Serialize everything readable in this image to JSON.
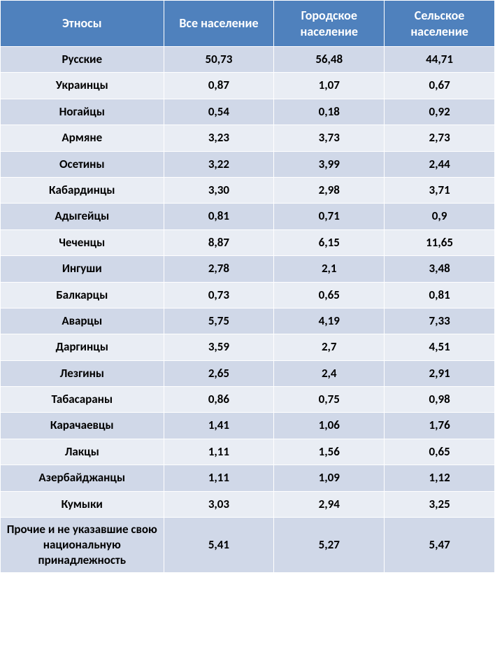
{
  "table": {
    "type": "table",
    "background_color": "#ffffff",
    "header_bg": "#4f81bd",
    "header_fg": "#ffffff",
    "row_odd_bg": "#d0d8e8",
    "row_even_bg": "#e9edf4",
    "cell_fg": "#000000",
    "border_color": "#ffffff",
    "header_fontsize": 18,
    "cell_fontsize": 17,
    "font_weight": "bold",
    "font_family": "Calibri",
    "columns": [
      {
        "key": "ethnos",
        "label": "Этносы",
        "width_pct": 33,
        "align": "center"
      },
      {
        "key": "all",
        "label": "Все население",
        "width_pct": 22.3,
        "align": "center"
      },
      {
        "key": "urban",
        "label": "Городское население",
        "width_pct": 22.3,
        "align": "center"
      },
      {
        "key": "rural",
        "label": "Сельское население",
        "width_pct": 22.3,
        "align": "center"
      }
    ],
    "rows": [
      {
        "ethnos": "Русские",
        "all": "50,73",
        "urban": "56,48",
        "rural": "44,71"
      },
      {
        "ethnos": "Украинцы",
        "all": "0,87",
        "urban": "1,07",
        "rural": "0,67"
      },
      {
        "ethnos": "Ногайцы",
        "all": "0,54",
        "urban": "0,18",
        "rural": "0,92"
      },
      {
        "ethnos": "Армяне",
        "all": "3,23",
        "urban": "3,73",
        "rural": "2,73"
      },
      {
        "ethnos": "Осетины",
        "all": "3,22",
        "urban": "3,99",
        "rural": "2,44"
      },
      {
        "ethnos": "Кабардинцы",
        "all": "3,30",
        "urban": "2,98",
        "rural": "3,71"
      },
      {
        "ethnos": "Адыгейцы",
        "all": "0,81",
        "urban": "0,71",
        "rural": "0,9"
      },
      {
        "ethnos": "Чеченцы",
        "all": "8,87",
        "urban": "6,15",
        "rural": "11,65"
      },
      {
        "ethnos": "Ингуши",
        "all": "2,78",
        "urban": "2,1",
        "rural": "3,48"
      },
      {
        "ethnos": "Балкарцы",
        "all": "0,73",
        "urban": "0,65",
        "rural": "0,81"
      },
      {
        "ethnos": "Аварцы",
        "all": "5,75",
        "urban": "4,19",
        "rural": "7,33"
      },
      {
        "ethnos": "Даргинцы",
        "all": "3,59",
        "urban": "2,7",
        "rural": "4,51"
      },
      {
        "ethnos": "Лезгины",
        "all": "2,65",
        "urban": "2,4",
        "rural": "2,91"
      },
      {
        "ethnos": "Табасараны",
        "all": "0,86",
        "urban": "0,75",
        "rural": "0,98"
      },
      {
        "ethnos": "Карачаевцы",
        "all": "1,41",
        "urban": "1,06",
        "rural": "1,76"
      },
      {
        "ethnos": "Лакцы",
        "all": "1,11",
        "urban": "1,56",
        "rural": "0,65"
      },
      {
        "ethnos": "Азербайджанцы",
        "all": "1,11",
        "urban": "1,09",
        "rural": "1,12"
      },
      {
        "ethnos": "Кумыки",
        "all": "3,03",
        "urban": "2,94",
        "rural": "3,25"
      },
      {
        "ethnos": "Прочие и не указавшие свою национальную принадлежность",
        "all": "5,41",
        "urban": "5,27",
        "rural": "5,47"
      }
    ]
  }
}
